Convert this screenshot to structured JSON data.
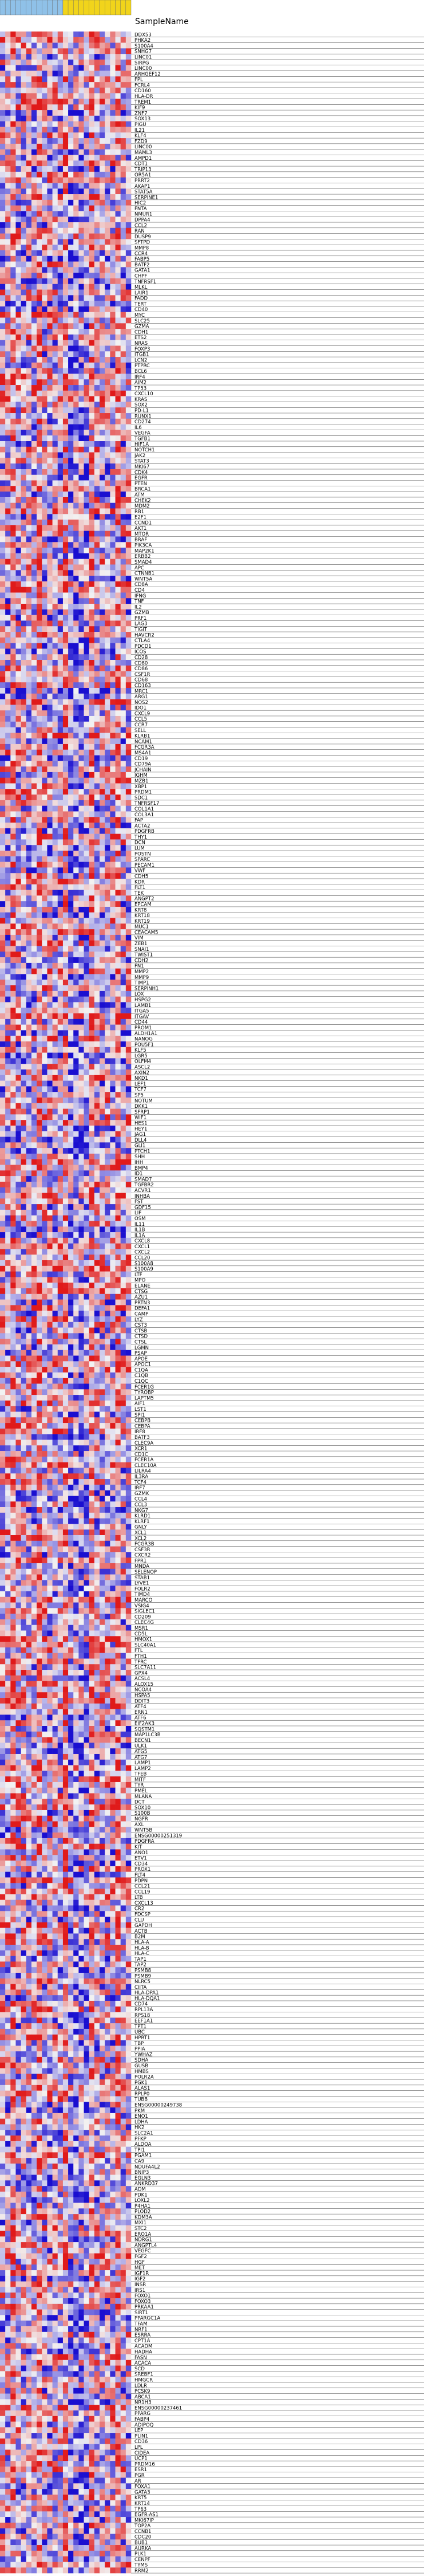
{
  "chart_data": {
    "type": "heatmap",
    "header_label": "SampleName",
    "colors": {
      "low": "#1a0fd0",
      "mid": "#f2f2f2",
      "high": "#e01a1a",
      "header_a": "#8fc1e8",
      "header_b": "#f1d41b",
      "row_line": "#333333"
    },
    "sample_groups": [
      "a",
      "a",
      "a",
      "a",
      "a",
      "a",
      "a",
      "a",
      "a",
      "a",
      "a",
      "a",
      "b",
      "b",
      "b",
      "b",
      "b",
      "b",
      "b",
      "b",
      "b",
      "b",
      "b",
      "b",
      "b"
    ],
    "rows": [
      "DDX53",
      "PHKA2",
      "S100A4",
      "SNHG7",
      "LINC01",
      "SIRPG",
      "LINC00",
      "ARHGEF12",
      "FPL",
      "FCRL4",
      "CD160",
      "HLA-DR",
      "TREM1",
      "KIF9",
      "ZNF7",
      "SOX13",
      "PIGU",
      "IL21",
      "KLF4",
      "FZD9",
      "LINC00",
      "MAML3",
      "AMPD1",
      "CDT1",
      "TRIP13",
      "OR5A1",
      "PRRT2",
      "AKAP1",
      "STAT5A",
      "SERPINE1",
      "HIC2",
      "FNTA",
      "NMUR1",
      "DPPA4",
      "CCL2",
      "RAN",
      "DUSP9",
      "SFTPD",
      "MMP8",
      "CCR4",
      "FABP5",
      "BATF2",
      "GATA1",
      "CHPF",
      "TNFRSF1",
      "MLKL",
      "LAIR1",
      "FADD",
      "TERT",
      "CD40",
      "MYC",
      "SLC25",
      "GZMA",
      "CDH1",
      "ETS2",
      "NRAS",
      "FOXP3",
      "ITGB1",
      "LCN2",
      "PTPRC",
      "BCL6",
      "IRF4",
      "AIM2",
      "TP53",
      "CXCL10",
      "KRAS",
      "SOX2",
      "PD-L1",
      "RUNX1",
      "CD274",
      "IL6",
      "VEGFA",
      "TGFB1",
      "HIF1A",
      "NOTCH1",
      "JAK2",
      "STAT3",
      "MKI67",
      "CDK4",
      "EGFR",
      "PTEN",
      "BRCA1",
      "ATM",
      "CHEK2",
      "MDM2",
      "RB1",
      "E2F1",
      "CCND1",
      "AKT1",
      "MTOR",
      "BRAF",
      "PIK3CA",
      "MAP2K1",
      "ERBB2",
      "SMAD4",
      "APC",
      "CTNNB1",
      "WNT5A",
      "CD8A",
      "CD4",
      "IFNG",
      "TNF",
      "IL2",
      "GZMB",
      "PRF1",
      "LAG3",
      "TIGIT",
      "HAVCR2",
      "CTLA4",
      "PDCD1",
      "ICOS",
      "CD28",
      "CD80",
      "CD86",
      "CSF1R",
      "CD68",
      "CD163",
      "MRC1",
      "ARG1",
      "NOS2",
      "IDO1",
      "CXCL9",
      "CCL5",
      "CCR7",
      "SELL",
      "KLRB1",
      "NCAM1",
      "FCGR3A",
      "MS4A1",
      "CD19",
      "CD79A",
      "JCHAIN",
      "IGHM",
      "MZB1",
      "XBP1",
      "PRDM1",
      "SDC1",
      "TNFRSF17",
      "COL1A1",
      "COL3A1",
      "FAP",
      "ACTA2",
      "PDGFRB",
      "THY1",
      "DCN",
      "LUM",
      "POSTN",
      "SPARC",
      "PECAM1",
      "VWF",
      "CDH5",
      "KDR",
      "FLT1",
      "TEK",
      "ANGPT2",
      "EPCAM",
      "KRT8",
      "KRT18",
      "KRT19",
      "MUC1",
      "CEACAM5",
      "VIM",
      "ZEB1",
      "SNAI1",
      "TWIST1",
      "CDH2",
      "FN1",
      "MMP2",
      "MMP9",
      "TIMP1",
      "SERPINH1",
      "LOX",
      "HSPG2",
      "LAMB1",
      "ITGA5",
      "ITGAV",
      "CD44",
      "PROM1",
      "ALDH1A1",
      "NANOG",
      "POU5F1",
      "KLF5",
      "LGR5",
      "OLFM4",
      "ASCL2",
      "AXIN2",
      "NKD1",
      "LEF1",
      "TCF7",
      "SP5",
      "NOTUM",
      "DKK1",
      "SFRP1",
      "WIF1",
      "HES1",
      "HEY1",
      "JAG1",
      "DLL4",
      "GLI1",
      "PTCH1",
      "SHH",
      "IHH",
      "BMP4",
      "ID1",
      "SMAD7",
      "TGFBR2",
      "ACVR1",
      "INHBA",
      "FST",
      "GDF15",
      "LIF",
      "OSM",
      "IL11",
      "IL1B",
      "IL1A",
      "CXCL8",
      "CXCL1",
      "CXCL2",
      "CCL20",
      "S100A8",
      "S100A9",
      "LTF",
      "MPO",
      "ELANE",
      "CTSG",
      "AZU1",
      "PRTN3",
      "DEFA1",
      "CAMP",
      "LYZ",
      "CST3",
      "CTSB",
      "CTSD",
      "CTSL",
      "LGMN",
      "PSAP",
      "APOE",
      "APOC1",
      "C1QA",
      "C1QB",
      "C1QC",
      "FCER1G",
      "TYROBP",
      "LAPTM5",
      "AIF1",
      "LST1",
      "SPI1",
      "CEBPB",
      "CEBPA",
      "IRF8",
      "BATF3",
      "CLEC9A",
      "XCR1",
      "CD1C",
      "FCER1A",
      "CLEC10A",
      "LILRA4",
      "IL3RA",
      "TCF4",
      "IRF7",
      "GZMK",
      "CCL4",
      "CCL3",
      "NKG7",
      "KLRD1",
      "KLRF1",
      "GNLY",
      "XCL1",
      "XCL2",
      "FCGR3B",
      "CSF3R",
      "CXCR2",
      "FPR1",
      "MNDA",
      "SELENOP",
      "STAB1",
      "LYVE1",
      "FOLR2",
      "TIMD4",
      "MARCO",
      "VSIG4",
      "SIGLEC1",
      "CD209",
      "CLEC4G",
      "MSR1",
      "CD5L",
      "HMOX1",
      "SLC40A1",
      "FTL",
      "FTH1",
      "TFRC",
      "SLC7A11",
      "GPX4",
      "ACSL4",
      "ALOX15",
      "NCOA4",
      "HSPA5",
      "DDIT3",
      "ATF4",
      "ERN1",
      "ATF6",
      "EIF2AK3",
      "SQSTM1",
      "MAP1LC3B",
      "BECN1",
      "ULK1",
      "ATG5",
      "ATG7",
      "LAMP1",
      "LAMP2",
      "TFEB",
      "MITF",
      "TYR",
      "PMEL",
      "MLANA",
      "DCT",
      "SOX10",
      "S100B",
      "NGFR",
      "AXL",
      "WNT5B",
      "ENSG00000251319",
      "PDGFRA",
      "KIT",
      "ANO1",
      "ETV1",
      "CD34",
      "PROX1",
      "FLT4",
      "PDPN",
      "CCL21",
      "CCL19",
      "LTB",
      "CXCL13",
      "CR2",
      "FDCSP",
      "CLU",
      "GAPDH",
      "ACTB",
      "B2M",
      "HLA-A",
      "HLA-B",
      "HLA-C",
      "TAP1",
      "TAP2",
      "PSMB8",
      "PSMB9",
      "NLRC5",
      "CIITA",
      "HLA-DPA1",
      "HLA-DQA1",
      "CD74",
      "RPL13A",
      "RPS18",
      "EEF1A1",
      "TPT1",
      "UBC",
      "HPRT1",
      "TBP",
      "PPIA",
      "YWHAZ",
      "SDHA",
      "GUSB",
      "HMBS",
      "POLR2A",
      "PGK1",
      "ALAS1",
      "RPLP0",
      "TUBB",
      "ENSG00000249738",
      "PKM",
      "ENO1",
      "LDHA",
      "HK2",
      "SLC2A1",
      "PFKP",
      "ALDOA",
      "TPI1",
      "PGAM1",
      "CA9",
      "NDUFA4L2",
      "BNIP3",
      "EGLN3",
      "ANKRD37",
      "ADM",
      "PDK1",
      "LOXL2",
      "P4HA1",
      "PLOD2",
      "KDM3A",
      "MXI1",
      "STC2",
      "ERO1A",
      "NDRG1",
      "ANGPTL4",
      "VEGFC",
      "FGF2",
      "HGF",
      "MET",
      "IGF1R",
      "IGF2",
      "INSR",
      "IRS1",
      "FOXO1",
      "FOXO3",
      "PRKAA1",
      "SIRT1",
      "PPARGC1A",
      "TFAM",
      "NRF1",
      "ESRRA",
      "CPT1A",
      "ACADM",
      "HADHA",
      "FASN",
      "ACACA",
      "SCD",
      "SREBF1",
      "HMGCR",
      "LDLR",
      "PCSK9",
      "ABCA1",
      "NR1H3",
      "ENSG00000237461",
      "PPARG",
      "FABP4",
      "ADIPOQ",
      "LEP",
      "PLIN1",
      "CD36",
      "LPL",
      "CIDEA",
      "UCP1",
      "PRDM16",
      "ESR1",
      "PGR",
      "AR",
      "FOXA1",
      "GATA3",
      "KRT5",
      "KRT14",
      "TP63",
      "EGFR-AS1",
      "MKI67IP",
      "TOP2A",
      "CCNB1",
      "CDC20",
      "BUB1",
      "AURKA",
      "PLK1",
      "CENPF",
      "TYMS",
      "RRM2"
    ]
  }
}
